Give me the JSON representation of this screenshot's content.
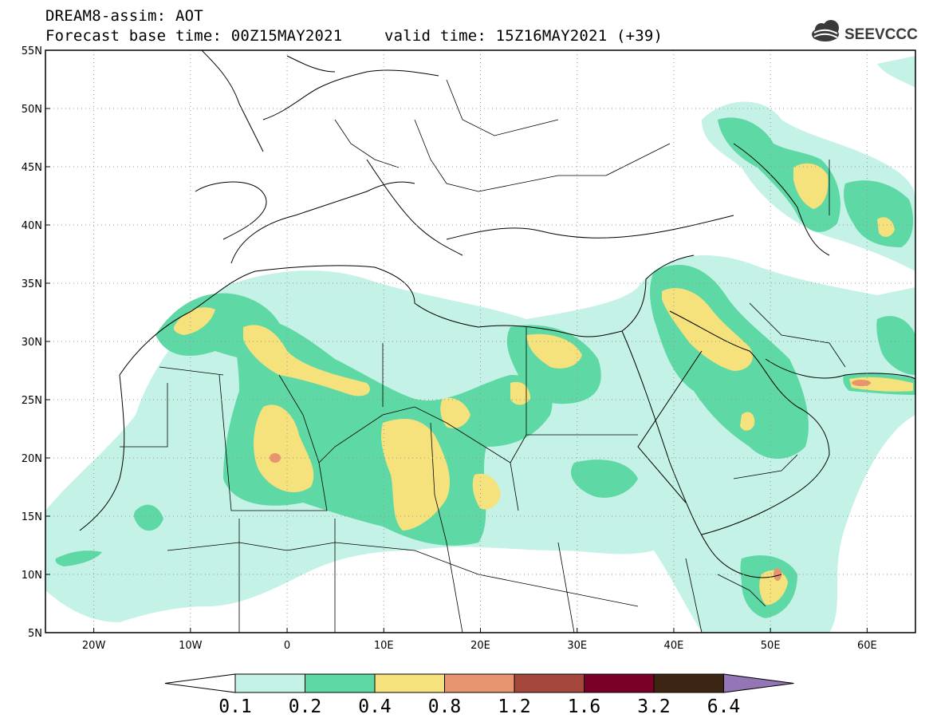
{
  "header": {
    "line1": "DREAM8-assim: AOT",
    "line2_base": "Forecast base time: 00Z15MAY2021",
    "line2_valid": "valid time: 15Z16MAY2021 (+39)",
    "logo_text": "SEEVCCC"
  },
  "map": {
    "lon_range": [
      -25,
      65
    ],
    "lat_range": [
      5,
      55
    ],
    "x_ticks": [
      {
        "lon": -20,
        "label": "20W"
      },
      {
        "lon": -10,
        "label": "10W"
      },
      {
        "lon": 0,
        "label": "0"
      },
      {
        "lon": 10,
        "label": "10E"
      },
      {
        "lon": 20,
        "label": "20E"
      },
      {
        "lon": 30,
        "label": "30E"
      },
      {
        "lon": 40,
        "label": "40E"
      },
      {
        "lon": 50,
        "label": "50E"
      },
      {
        "lon": 60,
        "label": "60E"
      }
    ],
    "y_ticks": [
      {
        "lat": 55,
        "label": "55N"
      },
      {
        "lat": 50,
        "label": "50N"
      },
      {
        "lat": 45,
        "label": "45N"
      },
      {
        "lat": 40,
        "label": "40N"
      },
      {
        "lat": 35,
        "label": "35N"
      },
      {
        "lat": 30,
        "label": "30N"
      },
      {
        "lat": 25,
        "label": "25N"
      },
      {
        "lat": 20,
        "label": "20N"
      },
      {
        "lat": 15,
        "label": "15N"
      },
      {
        "lat": 10,
        "label": "10N"
      },
      {
        "lat": 5,
        "label": "5N"
      }
    ],
    "gridlines": "dotted"
  },
  "colorbar": {
    "levels": [
      "0.1",
      "0.2",
      "0.4",
      "0.8",
      "1.2",
      "1.6",
      "3.2",
      "6.4"
    ],
    "colors": [
      "#ffffff",
      "#c4f2e6",
      "#5ed8a5",
      "#f5e27c",
      "#e6956e",
      "#a4473c",
      "#7a0027",
      "#3c2513",
      "#9475b5"
    ]
  }
}
